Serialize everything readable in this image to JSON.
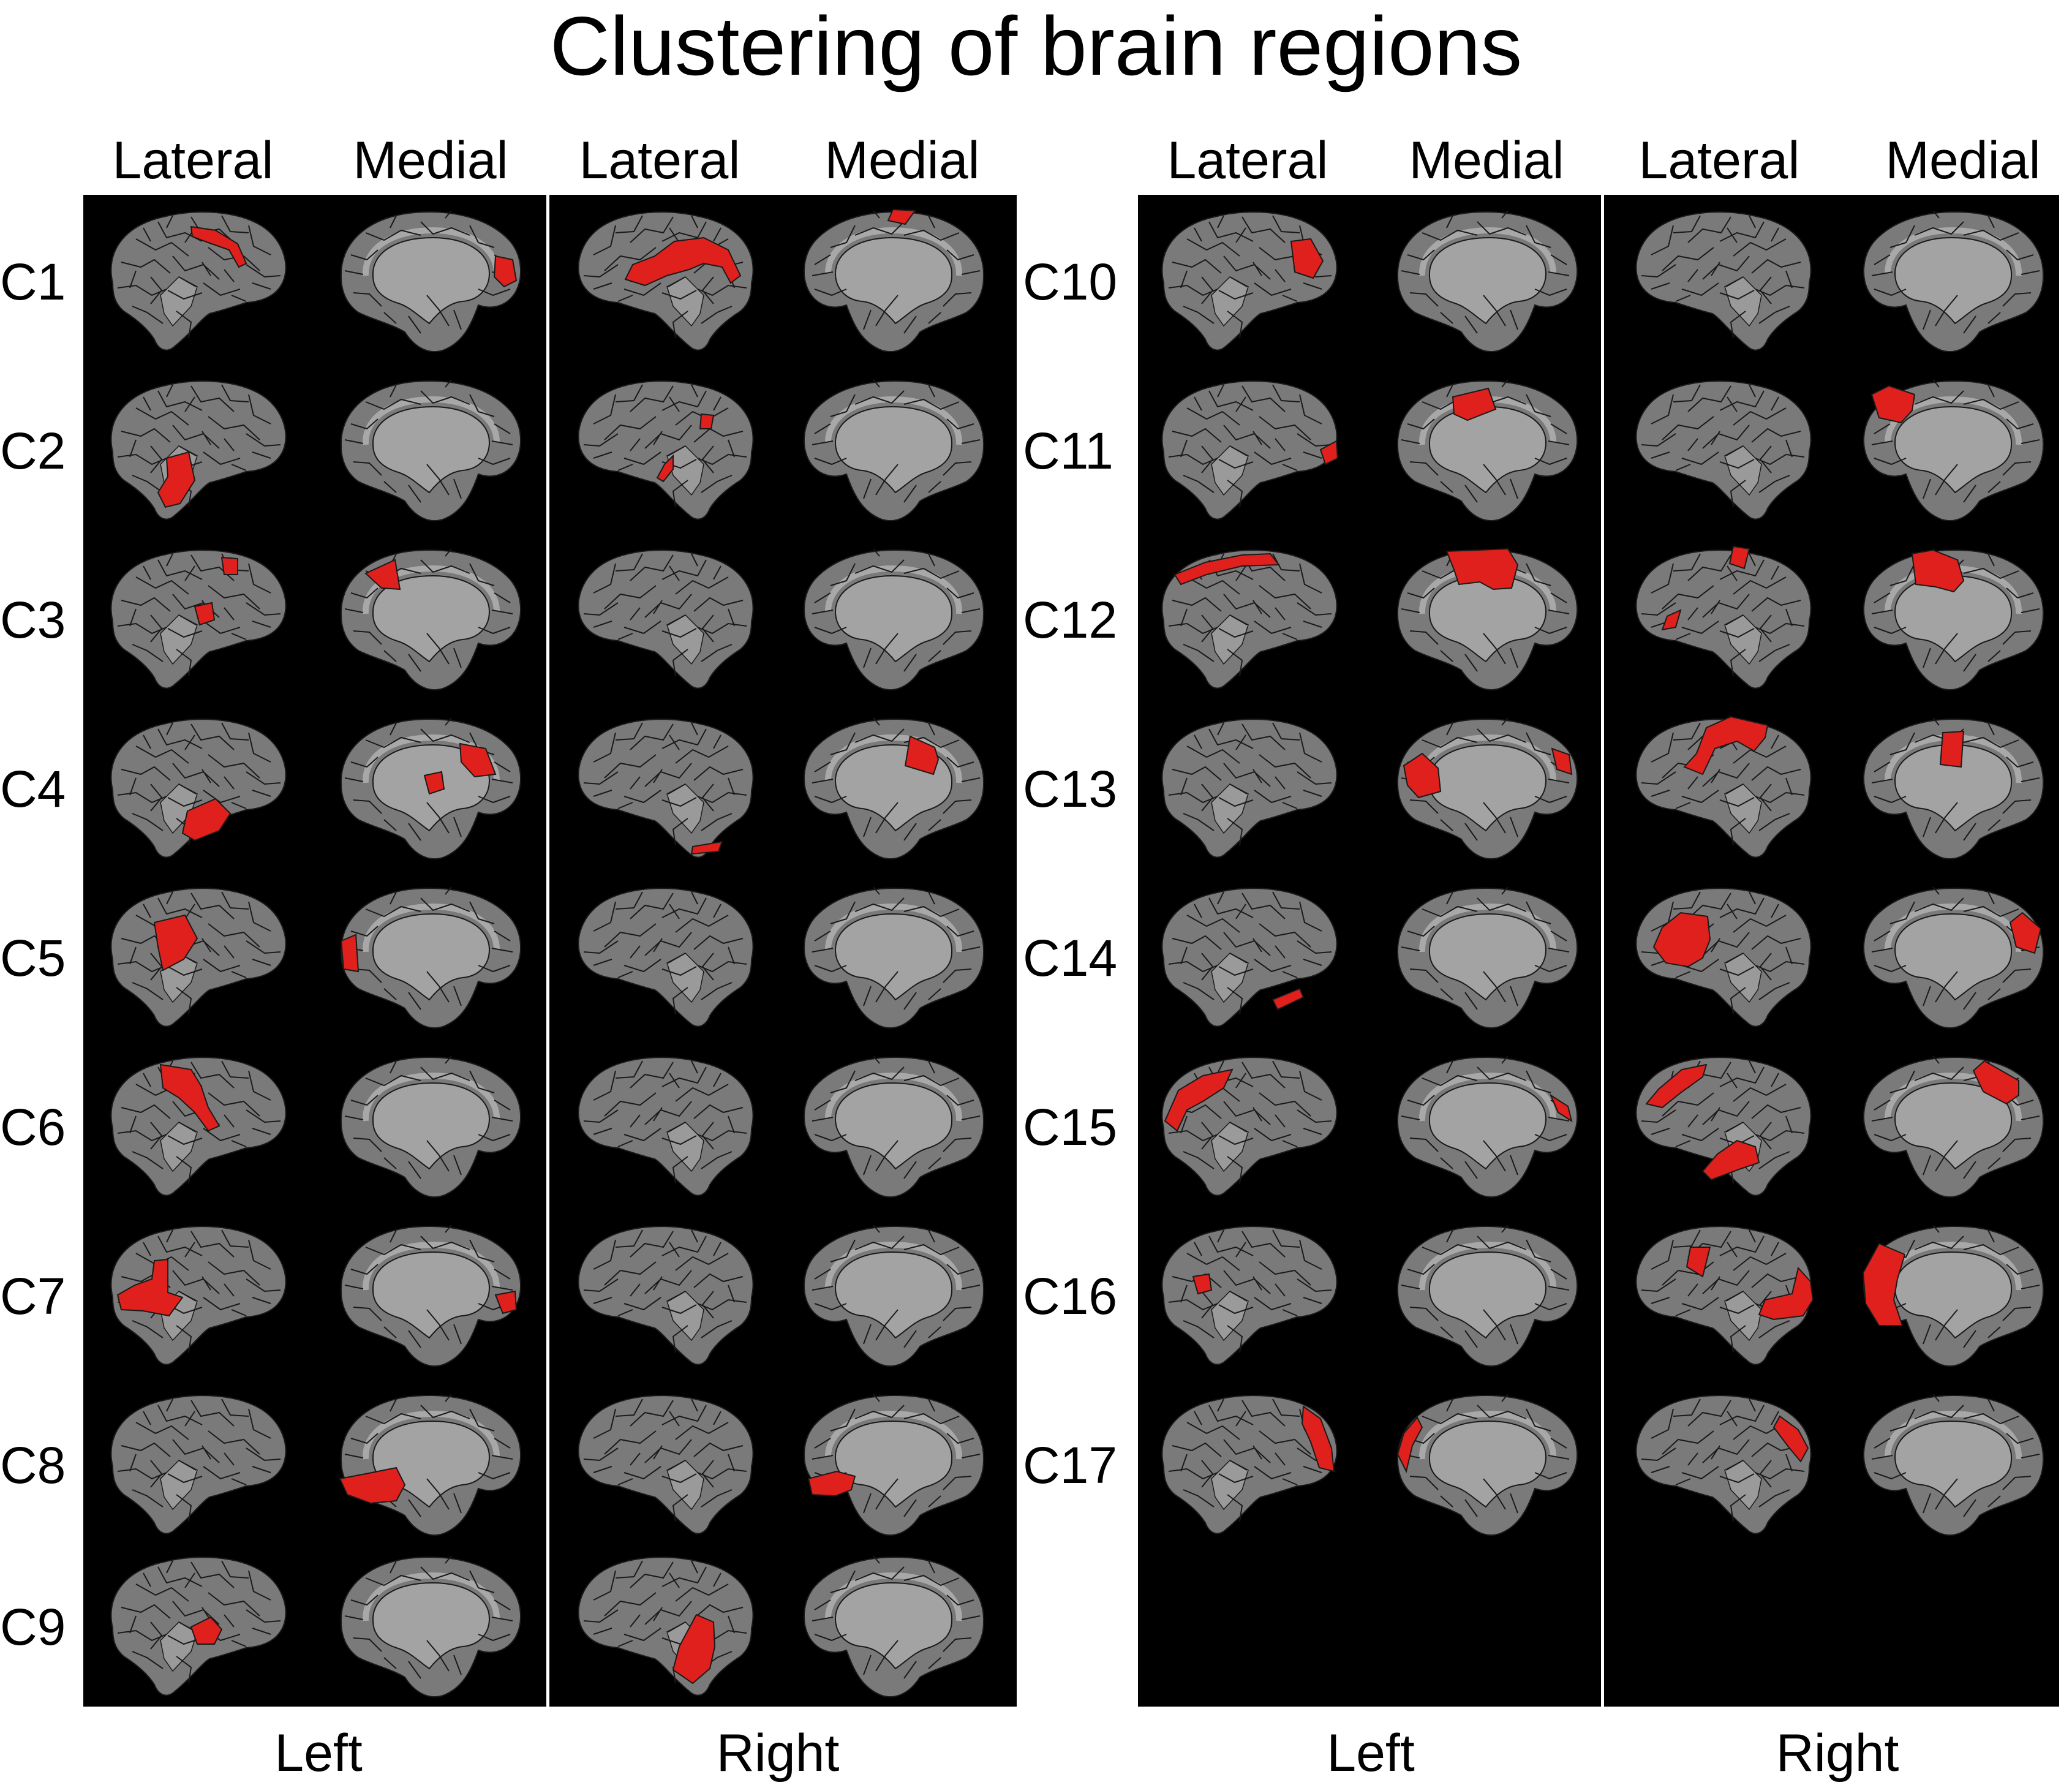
{
  "title": "Clustering of brain regions",
  "groups": [
    {
      "view_labels": [
        "Lateral",
        "Medial",
        "Lateral",
        "Medial"
      ],
      "hemisphere_labels": [
        "Left",
        "Right"
      ],
      "clusters": [
        {
          "label": "C1",
          "views": [
            [
              "rDots1"
            ],
            [
              "rPost"
            ],
            [
              "rCentralBig"
            ],
            [
              "rTop"
            ]
          ]
        },
        {
          "label": "C2",
          "views": [
            [
              "rTempBig"
            ],
            [],
            [
              "rSmallFront",
              "rSmallTemp"
            ],
            []
          ]
        },
        {
          "label": "C3",
          "views": [
            [
              "rTopBack",
              "rMid"
            ],
            [
              "rTopFront"
            ],
            [],
            []
          ]
        },
        {
          "label": "C4",
          "views": [
            [
              "rTempLow"
            ],
            [
              "rMid",
              "rPostMid"
            ],
            [
              "rBottom"
            ],
            [
              "rMidFront"
            ]
          ]
        },
        {
          "label": "C5",
          "views": [
            [
              "rFrontMid"
            ],
            [
              "rFrontEdge"
            ],
            [],
            []
          ]
        },
        {
          "label": "C6",
          "views": [
            [
              "rCentralDiag"
            ],
            [],
            [],
            []
          ]
        },
        {
          "label": "C7",
          "views": [
            [
              "rFrontLow"
            ],
            [
              "rBackEdge"
            ],
            [],
            []
          ]
        },
        {
          "label": "C8",
          "views": [
            [],
            [
              "rMedTempFront"
            ],
            [],
            [
              "rMedTempBack"
            ]
          ]
        },
        {
          "label": "C9",
          "views": [
            [
              "rTempMid"
            ],
            [],
            [
              "rFrontLowBig"
            ],
            []
          ]
        }
      ]
    },
    {
      "view_labels": [
        "Lateral",
        "Medial",
        "Lateral",
        "Medial"
      ],
      "hemisphere_labels": [
        "Left",
        "Right"
      ],
      "clusters": [
        {
          "label": "C10",
          "views": [
            [
              "rBackMid"
            ],
            [],
            [],
            []
          ]
        },
        {
          "label": "C11",
          "views": [
            [
              "rBackTip"
            ],
            [
              "rTopFront2"
            ],
            [],
            [
              "rTopBack2"
            ]
          ]
        },
        {
          "label": "C12",
          "views": [
            [
              "rTopStrip"
            ],
            [
              "rTopCenter"
            ],
            [
              "rSmallTop",
              "rSmallBack"
            ],
            [
              "rTopCenter2"
            ]
          ]
        },
        {
          "label": "C13",
          "views": [
            [],
            [
              "rFrontMid2",
              "rBackTip2"
            ],
            [
              "rTopFrontBig"
            ],
            [
              "rTopMid2"
            ]
          ]
        },
        {
          "label": "C14",
          "views": [
            [
              "rBottomTemp"
            ],
            [],
            [
              "rBackMidBig"
            ],
            [
              "rFrontUp"
            ]
          ]
        },
        {
          "label": "C15",
          "views": [
            [
              "rFrontUpBig"
            ],
            [
              "rBackTip3"
            ],
            [
              "rTopDiag",
              "rTempLow2"
            ],
            [
              "rFrontTop"
            ]
          ]
        },
        {
          "label": "C16",
          "views": [
            [
              "rFrontSmall"
            ],
            [],
            [
              "rFrontLowEdge",
              "rMidSmall"
            ],
            [
              "rBackEdgeBig"
            ]
          ]
        },
        {
          "label": "C17",
          "views": [
            [
              "rBackEdgeTall"
            ],
            [
              "rFrontEdge2"
            ],
            [
              "rFrontEdge3"
            ],
            []
          ]
        }
      ]
    }
  ],
  "colors": {
    "background": "#000000",
    "cortex": "#7a7a7a",
    "medial_wall": "#a3a3a3",
    "insula": "#9a9a9a",
    "parcel_lines": "#1a1a1a",
    "highlight": "#e0201c",
    "divider": "#ffffff"
  }
}
